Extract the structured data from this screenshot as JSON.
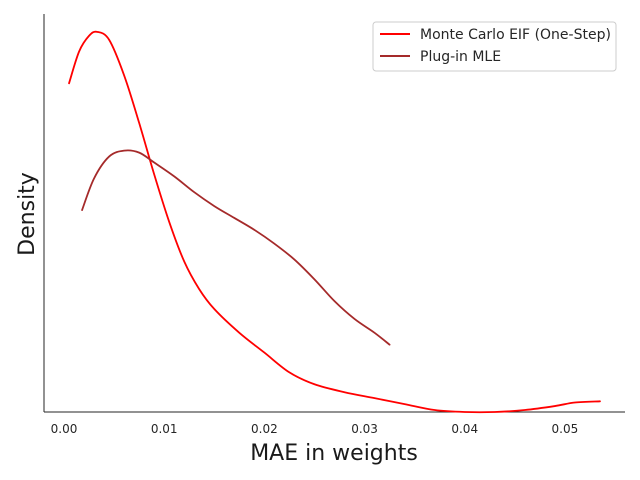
{
  "chart_data": {
    "type": "line",
    "title": "",
    "xlabel": "MAE in weights",
    "ylabel": "Density",
    "xlim": [
      -0.002,
      0.056
    ],
    "ylim": [
      0,
      1
    ],
    "x_ticks": [
      "0.00",
      "0.01",
      "0.02",
      "0.03",
      "0.04",
      "0.05"
    ],
    "x_tick_values": [
      0.0,
      0.01,
      0.02,
      0.03,
      0.04,
      0.05
    ],
    "show_y_ticks": false,
    "grid": false,
    "legend_position": "top-right",
    "series": [
      {
        "name": "Monte Carlo EIF (One-Step)",
        "color": "#ff0000",
        "points": [
          [
            0.0005,
            0.83
          ],
          [
            0.0015,
            0.91
          ],
          [
            0.0025,
            0.95
          ],
          [
            0.0033,
            0.96
          ],
          [
            0.0045,
            0.94
          ],
          [
            0.006,
            0.85
          ],
          [
            0.0075,
            0.73
          ],
          [
            0.009,
            0.6
          ],
          [
            0.0105,
            0.48
          ],
          [
            0.012,
            0.38
          ],
          [
            0.0135,
            0.31
          ],
          [
            0.015,
            0.26
          ],
          [
            0.0175,
            0.2
          ],
          [
            0.02,
            0.15
          ],
          [
            0.0225,
            0.1
          ],
          [
            0.025,
            0.07
          ],
          [
            0.028,
            0.05
          ],
          [
            0.031,
            0.035
          ],
          [
            0.034,
            0.02
          ],
          [
            0.037,
            0.005
          ],
          [
            0.04,
            0.0
          ],
          [
            0.043,
            0.0
          ],
          [
            0.046,
            0.005
          ],
          [
            0.049,
            0.015
          ],
          [
            0.051,
            0.024
          ],
          [
            0.0535,
            0.027
          ]
        ]
      },
      {
        "name": "Plug-in MLE",
        "color": "#a52a2a",
        "points": [
          [
            0.0018,
            0.51
          ],
          [
            0.003,
            0.59
          ],
          [
            0.0045,
            0.645
          ],
          [
            0.006,
            0.66
          ],
          [
            0.0075,
            0.655
          ],
          [
            0.009,
            0.63
          ],
          [
            0.011,
            0.595
          ],
          [
            0.013,
            0.555
          ],
          [
            0.015,
            0.52
          ],
          [
            0.017,
            0.49
          ],
          [
            0.019,
            0.46
          ],
          [
            0.021,
            0.425
          ],
          [
            0.023,
            0.385
          ],
          [
            0.025,
            0.335
          ],
          [
            0.027,
            0.28
          ],
          [
            0.029,
            0.235
          ],
          [
            0.031,
            0.2
          ],
          [
            0.0325,
            0.17
          ]
        ]
      }
    ]
  }
}
